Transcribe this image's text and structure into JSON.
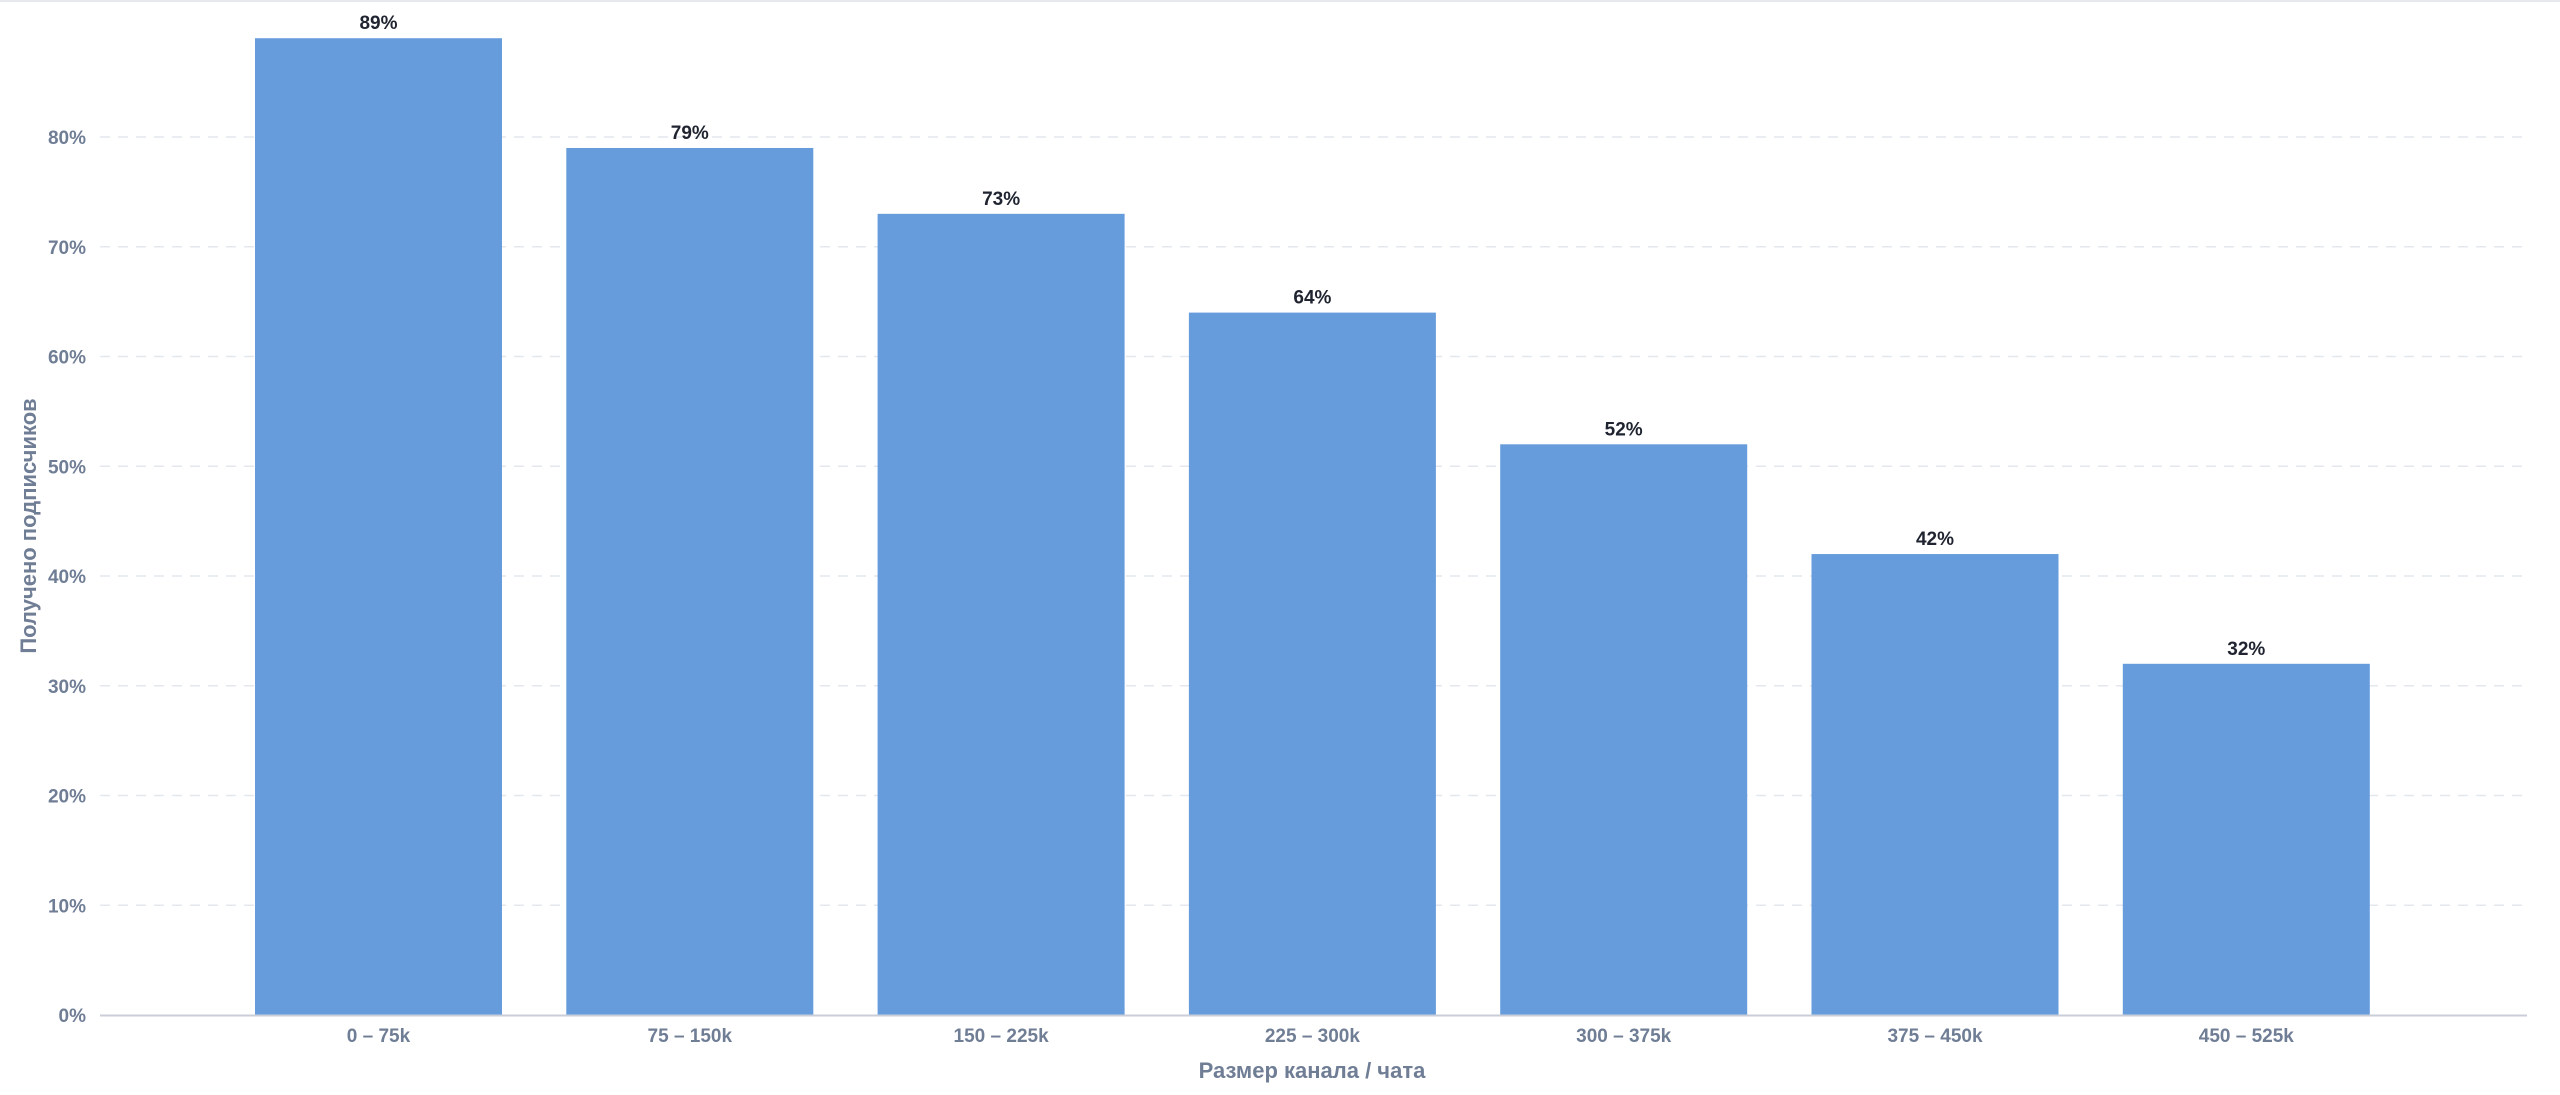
{
  "chart_data": {
    "type": "bar",
    "categories": [
      "0 – 75k",
      "75 – 150k",
      "150 – 225k",
      "225 – 300k",
      "300 – 375k",
      "375 – 450k",
      "450 – 525k"
    ],
    "values": [
      89,
      79,
      73,
      64,
      52,
      42,
      32
    ],
    "value_labels": [
      "89%",
      "79%",
      "73%",
      "64%",
      "52%",
      "42%",
      "32%"
    ],
    "xlabel": "Размер канала / чата",
    "ylabel": "Получено подписчиков",
    "ylim": [
      0,
      90
    ],
    "yticks": [
      0,
      10,
      20,
      30,
      40,
      50,
      60,
      70,
      80
    ],
    "ytick_labels": [
      "0%",
      "10%",
      "20%",
      "30%",
      "40%",
      "50%",
      "60%",
      "70%",
      "80%"
    ],
    "grid": true,
    "legend": "none",
    "colors": {
      "bar": "#669cdc",
      "grid": "#e3e7ee",
      "axis": "#c9ced8",
      "tick_text": "#6f7d95",
      "value_text": "#1f2430"
    }
  }
}
